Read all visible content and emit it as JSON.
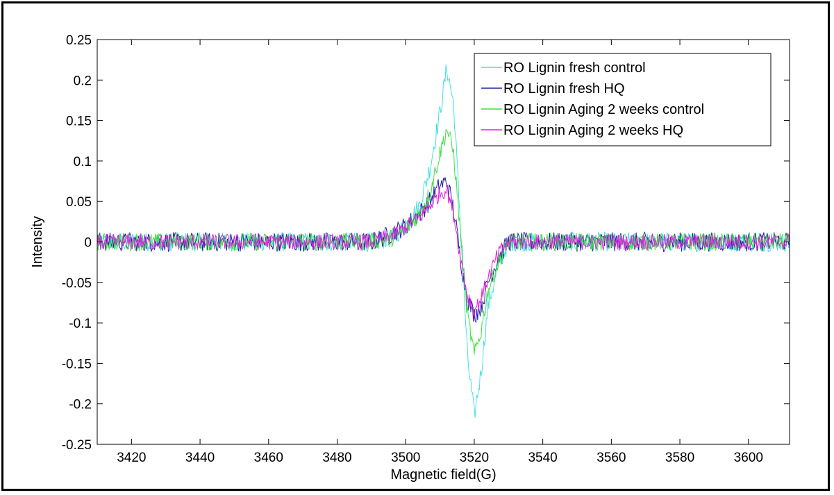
{
  "chart_data": {
    "type": "line",
    "title": "",
    "xlabel": "Magnetic field(G)",
    "ylabel": "Intensity",
    "xlim": [
      3410,
      3612
    ],
    "ylim": [
      -0.25,
      0.25
    ],
    "x_ticks": [
      3420,
      3440,
      3460,
      3480,
      3500,
      3520,
      3540,
      3560,
      3580,
      3600
    ],
    "y_ticks": [
      -0.25,
      -0.2,
      -0.15,
      -0.1,
      -0.05,
      0,
      0.05,
      0.1,
      0.15,
      0.2,
      0.25
    ],
    "x_tick_labels": [
      "3420",
      "3440",
      "3460",
      "3480",
      "3500",
      "3520",
      "3540",
      "3560",
      "3580",
      "3600"
    ],
    "y_tick_labels": [
      "-0.25",
      "-0.2",
      "-0.15",
      "-0.1",
      "-0.05",
      "0",
      "0.05",
      "0.1",
      "0.15",
      "0.2",
      "0.25"
    ],
    "grid": false,
    "legend_position": "top-right",
    "series": [
      {
        "name": "RO Lignin fresh control",
        "color": "#40e0e0",
        "x": [
          3410,
          3450,
          3490,
          3496,
          3500,
          3504,
          3507,
          3510,
          3512,
          3514,
          3516,
          3518,
          3520,
          3522,
          3524,
          3527,
          3530,
          3540,
          3580,
          3612
        ],
        "values": [
          0,
          0,
          0,
          0.005,
          0.02,
          0.045,
          0.09,
          0.16,
          0.215,
          0.17,
          0.02,
          -0.14,
          -0.215,
          -0.16,
          -0.08,
          -0.03,
          0,
          0,
          0,
          0
        ],
        "noise": 0.012
      },
      {
        "name": "RO Lignin fresh HQ",
        "color": "#2020a0",
        "x": [
          3410,
          3450,
          3490,
          3496,
          3500,
          3504,
          3507,
          3510,
          3512,
          3514,
          3516,
          3518,
          3520,
          3522,
          3524,
          3527,
          3530,
          3540,
          3580,
          3612
        ],
        "values": [
          0,
          0,
          0,
          0.01,
          0.02,
          0.035,
          0.05,
          0.07,
          0.075,
          0.04,
          -0.02,
          -0.07,
          -0.09,
          -0.08,
          -0.05,
          -0.02,
          0,
          0,
          0,
          0
        ],
        "noise": 0.012
      },
      {
        "name": "RO Lignin Aging 2 weeks control",
        "color": "#40e040",
        "x": [
          3410,
          3450,
          3490,
          3496,
          3500,
          3504,
          3507,
          3510,
          3512,
          3514,
          3516,
          3518,
          3520,
          3522,
          3524,
          3527,
          3530,
          3540,
          3580,
          3612
        ],
        "values": [
          0,
          0,
          0,
          0.005,
          0.015,
          0.035,
          0.06,
          0.11,
          0.14,
          0.11,
          0.01,
          -0.09,
          -0.14,
          -0.11,
          -0.06,
          -0.025,
          0,
          0,
          0,
          0
        ],
        "noise": 0.011
      },
      {
        "name": "RO Lignin Aging 2 weeks HQ",
        "color": "#e020e0",
        "x": [
          3410,
          3450,
          3490,
          3496,
          3500,
          3504,
          3507,
          3510,
          3512,
          3514,
          3516,
          3518,
          3520,
          3522,
          3524,
          3527,
          3530,
          3540,
          3580,
          3612
        ],
        "values": [
          0,
          0,
          0,
          0.008,
          0.018,
          0.03,
          0.045,
          0.06,
          0.065,
          0.035,
          -0.02,
          -0.065,
          -0.085,
          -0.07,
          -0.045,
          -0.015,
          0,
          0,
          0,
          0
        ],
        "noise": 0.01
      }
    ]
  }
}
